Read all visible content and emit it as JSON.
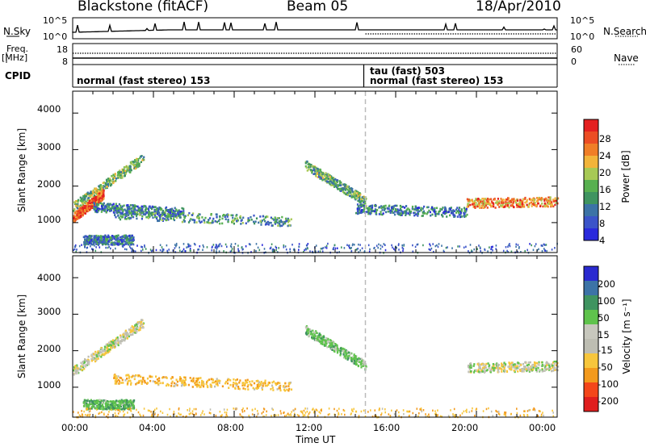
{
  "header": {
    "station": "Blackstone (fitACF)",
    "beam": "Beam 05",
    "date": "18/Apr/2010"
  },
  "strip_noise": {
    "left_label": "N.Sky",
    "right_label": "N.Search",
    "left_ticks": [
      "10^5",
      "10^0"
    ],
    "right_ticks": [
      "10^5",
      "10^0"
    ]
  },
  "strip_freq": {
    "left_label": "Freq.",
    "left_unit": "[MHz]",
    "right_label": "Nave",
    "left_ticks": [
      "18",
      "8"
    ],
    "right_ticks": [
      "60",
      "0"
    ]
  },
  "strip_cpid": {
    "label": "CPID",
    "modes": [
      {
        "text": "normal (fast stereo) 153",
        "row": "lower"
      },
      {
        "text": "tau (fast) 503",
        "row": "upper"
      },
      {
        "text": "normal (fast stereo) 153",
        "row": "lower"
      }
    ]
  },
  "palettes": {
    "power": [
      "#2a2adc",
      "#3b54c9",
      "#3c73a6",
      "#3f9460",
      "#58b050",
      "#a7c955",
      "#f2b43a",
      "#f07e27",
      "#ec4d24",
      "#e42020"
    ],
    "velocity": [
      "#e01e1e",
      "#f4461a",
      "#f39a1d",
      "#f7c63c",
      "#bdbdb2",
      "#c7c7bd",
      "#5fc34c",
      "#3f9460",
      "#3c73a6",
      "#2a2ad0"
    ]
  },
  "chart_data": [
    {
      "type": "heatmap",
      "ylabel": "Slant Range [km]",
      "xlabel": "",
      "ylim": [
        180,
        4600
      ],
      "xlim": [
        "00:00",
        "24:00"
      ],
      "yticks": [
        "1000",
        "2000",
        "3000",
        "4000"
      ],
      "xticks": [
        "00:00",
        "04:00",
        "08:00",
        "12:00",
        "16:00",
        "20:00",
        "00:00"
      ],
      "colorbar": {
        "label": "Power [dB]",
        "ticks": [
          "4",
          "8",
          "12",
          "16",
          "20",
          "24",
          "28"
        ],
        "range": [
          0,
          30
        ]
      },
      "mode_change_time": "14:30",
      "echo_bands": [
        {
          "t_start": 0.0,
          "t_end": 3.5,
          "range_start": 1450,
          "range_end": 2800,
          "power": 14
        },
        {
          "t_start": 0.0,
          "t_end": 1.5,
          "range_start": 1150,
          "range_end": 1800,
          "power": 26
        },
        {
          "t_start": 1.0,
          "t_end": 5.5,
          "range_start": 1450,
          "range_end": 1300,
          "power": 8
        },
        {
          "t_start": 2.0,
          "t_end": 10.8,
          "range_start": 1250,
          "range_end": 1050,
          "power": 10
        },
        {
          "t_start": 0.5,
          "t_end": 3.0,
          "range_start": 550,
          "range_end": 550,
          "power": 8
        },
        {
          "t_start": 11.5,
          "t_end": 14.5,
          "range_start": 2600,
          "range_end": 1600,
          "power": 12
        },
        {
          "t_start": 14.0,
          "t_end": 19.5,
          "range_start": 1400,
          "range_end": 1300,
          "power": 8
        },
        {
          "t_start": 19.5,
          "t_end": 24.0,
          "range_start": 1550,
          "range_end": 1600,
          "power": 22
        }
      ]
    },
    {
      "type": "heatmap",
      "ylabel": "Slant Range [km]",
      "xlabel": "Time UT",
      "ylim": [
        180,
        4600
      ],
      "xlim": [
        "00:00",
        "24:00"
      ],
      "yticks": [
        "1000",
        "2000",
        "3000",
        "4000"
      ],
      "xticks": [
        "00:00",
        "04:00",
        "08:00",
        "12:00",
        "16:00",
        "20:00",
        "00:00"
      ],
      "colorbar": {
        "label": "Velocity [m s⁻¹]",
        "ticks": [
          "200",
          "100",
          "50",
          "15",
          "-15",
          "-50",
          "-100",
          "-200"
        ],
        "range": [
          -250,
          250
        ]
      },
      "mode_change_time": "14:30",
      "echo_bands": [
        {
          "t_start": 0.0,
          "t_end": 3.5,
          "range_start": 1450,
          "range_end": 2800,
          "velocity": 0
        },
        {
          "t_start": 2.0,
          "t_end": 10.8,
          "range_start": 1250,
          "range_end": 1050,
          "velocity": -40
        },
        {
          "t_start": 0.5,
          "t_end": 3.0,
          "range_start": 550,
          "range_end": 550,
          "velocity": 40
        },
        {
          "t_start": 11.5,
          "t_end": 14.5,
          "range_start": 2600,
          "range_end": 1600,
          "velocity": 30
        },
        {
          "t_start": 19.5,
          "t_end": 24.0,
          "range_start": 1550,
          "range_end": 1600,
          "velocity": 0
        }
      ]
    }
  ]
}
